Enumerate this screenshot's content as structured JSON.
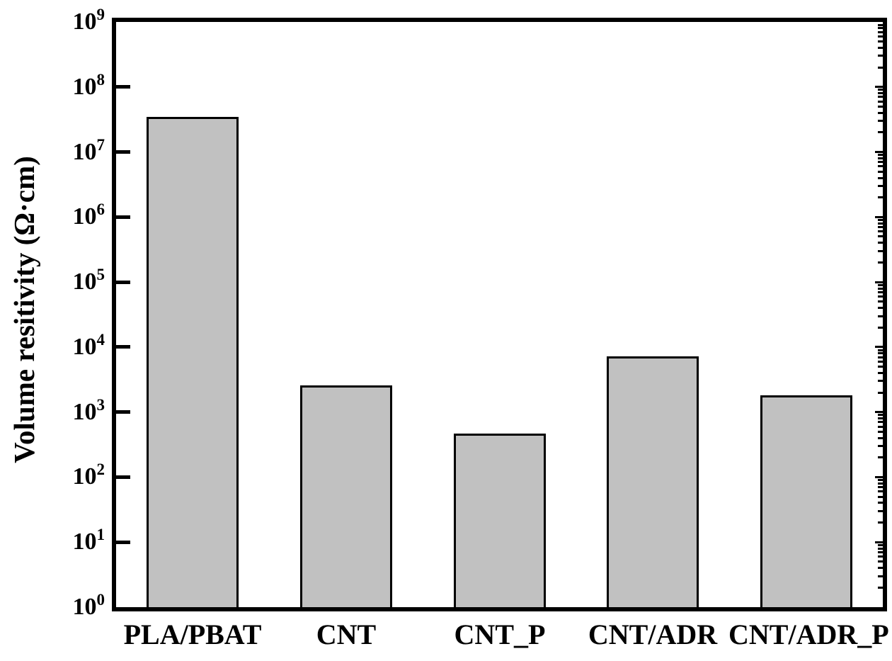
{
  "figure": {
    "background_color": "#ffffff",
    "axis_color": "#000000",
    "bar_fill_color": "#c1c1c1",
    "bar_border_color": "#000000",
    "text_color": "#000000"
  },
  "chart_data": {
    "type": "bar",
    "title": "",
    "xlabel": "",
    "ylabel": "Volume resitivity (Ω·cm)",
    "y_scale": "log",
    "ylim": [
      1,
      1000000000
    ],
    "grid": false,
    "legend": null,
    "ytick_base": "10",
    "ytick_exponents": [
      0,
      1,
      2,
      3,
      4,
      5,
      6,
      7,
      8,
      9
    ],
    "categories": [
      "PLA/PBAT",
      "CNT",
      "CNT_P",
      "CNT/ADR",
      "CNT/ADR_P"
    ],
    "values": [
      35000000,
      2600,
      470,
      7200,
      1800
    ],
    "series": [
      {
        "name": "Volume resistivity",
        "values": [
          35000000,
          2600,
          470,
          7200,
          1800
        ]
      }
    ]
  }
}
